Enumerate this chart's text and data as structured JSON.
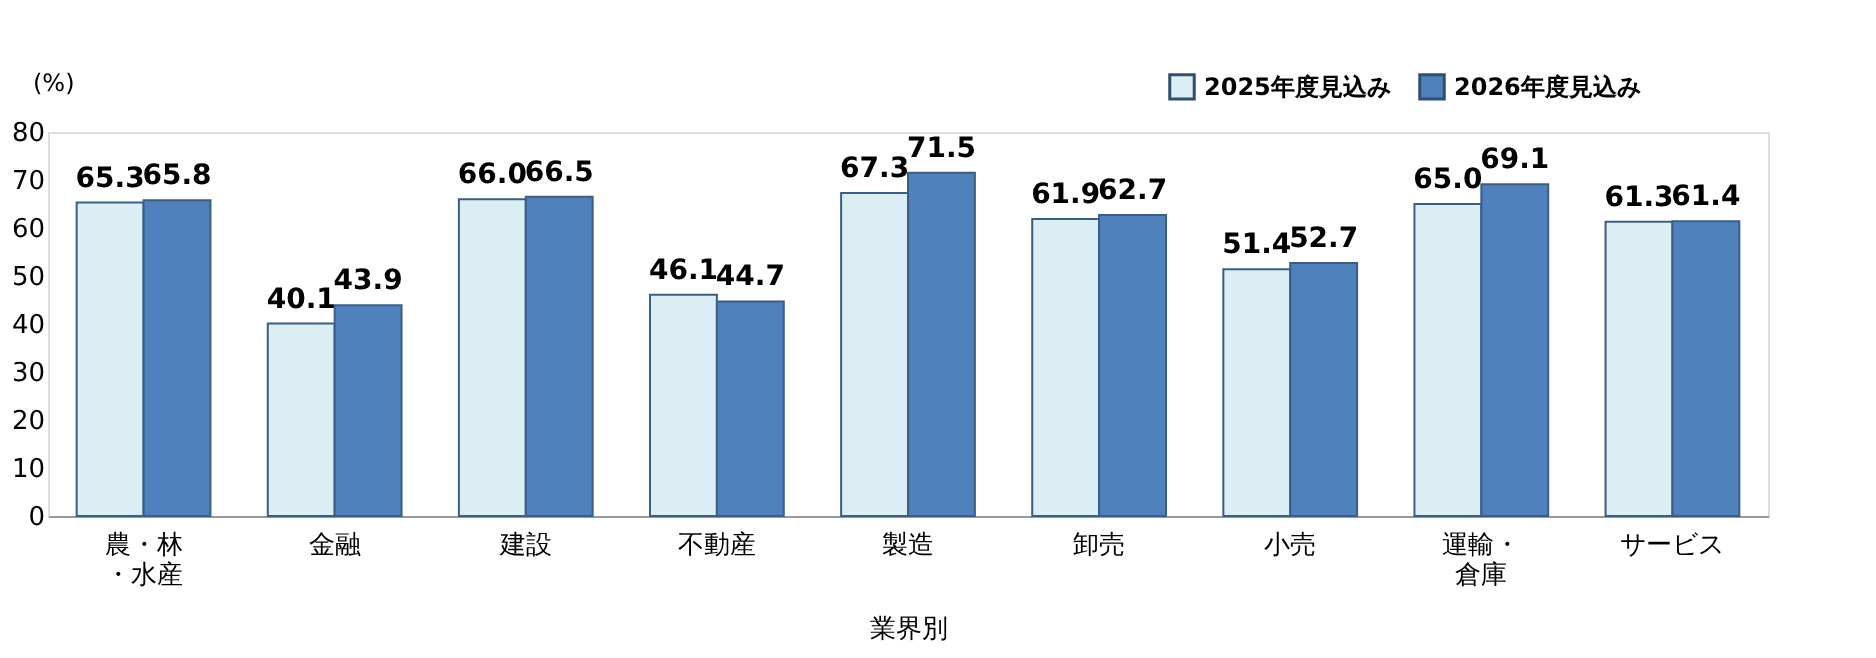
{
  "chart_data": {
    "type": "bar",
    "categories": [
      "農・林・水産",
      "金融",
      "建設",
      "不動産",
      "製造",
      "卸売",
      "小売",
      "運輸・倉庫",
      "サービス"
    ],
    "series": [
      {
        "name": "2025年度見込み",
        "color": "#daeef3",
        "values": [
          65.3,
          40.1,
          66.0,
          46.1,
          67.3,
          61.9,
          51.4,
          65.0,
          61.3
        ],
        "value_labels": [
          "65.3",
          "40.1",
          "66.0",
          "46.1",
          "67.3",
          "61.9",
          "51.4",
          "65.0",
          "61.3"
        ]
      },
      {
        "name": "2026年度見込み",
        "color": "#4f81bd",
        "values": [
          65.8,
          43.9,
          66.5,
          44.7,
          71.5,
          62.7,
          52.7,
          69.1,
          61.4
        ],
        "value_labels": [
          "65.8",
          "43.9",
          "66.5",
          "44.7",
          "71.5",
          "62.7",
          "52.7",
          "69.1",
          "61.4"
        ]
      }
    ],
    "xlabel": "業界別",
    "ylabel": "(%)",
    "ylim": [
      0,
      80
    ],
    "yticks": [
      0,
      10,
      20,
      30,
      40,
      50,
      60,
      70,
      80
    ],
    "grid": false,
    "legend": "top right"
  }
}
